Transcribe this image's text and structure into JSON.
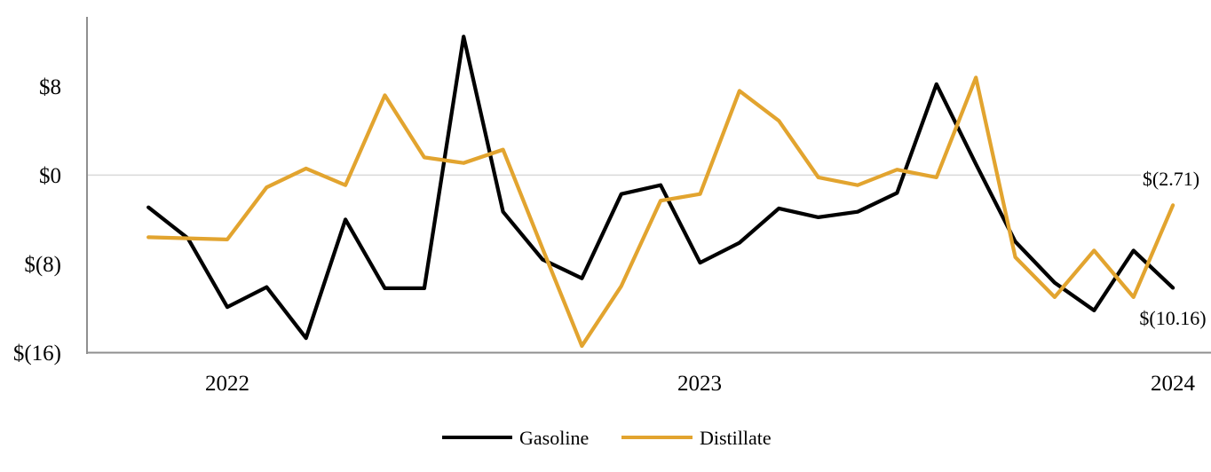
{
  "chart_data": {
    "type": "line",
    "title": "",
    "xlabel": "",
    "ylabel": "",
    "x_months": [
      "2021-11",
      "2021-12",
      "2022-01",
      "2022-02",
      "2022-03",
      "2022-04",
      "2022-05",
      "2022-06",
      "2022-07",
      "2022-08",
      "2022-09",
      "2022-10",
      "2022-11",
      "2022-12",
      "2023-01",
      "2023-02",
      "2023-03",
      "2023-04",
      "2023-05",
      "2023-06",
      "2023-07",
      "2023-08",
      "2023-09",
      "2023-10",
      "2023-11",
      "2023-12",
      "2024-01"
    ],
    "x_year_ticks": [
      {
        "text": "2022",
        "month_index": 2
      },
      {
        "text": "2023",
        "month_index": 14
      },
      {
        "text": "2024",
        "month_index": 26
      }
    ],
    "yticks": [
      {
        "label": "$8",
        "value": 8
      },
      {
        "label": "$0",
        "value": 0
      },
      {
        "label": "$(8)",
        "value": -8
      },
      {
        "label": "$(16)",
        "value": -16
      }
    ],
    "ylim": [
      -16.5,
      14.2
    ],
    "grid": "zero-line-only",
    "legend_position": "bottom-center",
    "series": [
      {
        "name": "Gasoline",
        "color": "#000000",
        "values": [
          -2.9,
          -5.7,
          -11.9,
          -10.1,
          -14.7,
          -4.0,
          -10.2,
          -10.2,
          12.5,
          -3.3,
          -7.6,
          -9.3,
          -1.7,
          -0.9,
          -7.9,
          -6.1,
          -3.0,
          -3.8,
          -3.3,
          -1.6,
          8.2,
          1.0,
          -6.0,
          -9.7,
          -12.2,
          -6.8,
          -10.16
        ]
      },
      {
        "name": "Distillate",
        "color": "#E2A42F",
        "values": [
          -5.6,
          -5.7,
          -5.8,
          -1.1,
          0.6,
          -0.9,
          7.2,
          1.6,
          1.1,
          2.3,
          -6.6,
          -15.4,
          -10.0,
          -2.3,
          -1.7,
          7.6,
          4.9,
          -0.2,
          -0.9,
          0.5,
          -0.2,
          8.8,
          -7.4,
          -11.0,
          -6.8,
          -11.0,
          -2.71
        ]
      }
    ],
    "end_labels": [
      {
        "series": "Distillate",
        "text": "$(2.71)",
        "value": -2.71
      },
      {
        "series": "Gasoline",
        "text": "$(10.16)",
        "value": -10.16
      }
    ],
    "axis_colors": {
      "spine": "#8f8f8f",
      "zero_gridline": "#d9d9d9",
      "text": "#000000"
    }
  }
}
